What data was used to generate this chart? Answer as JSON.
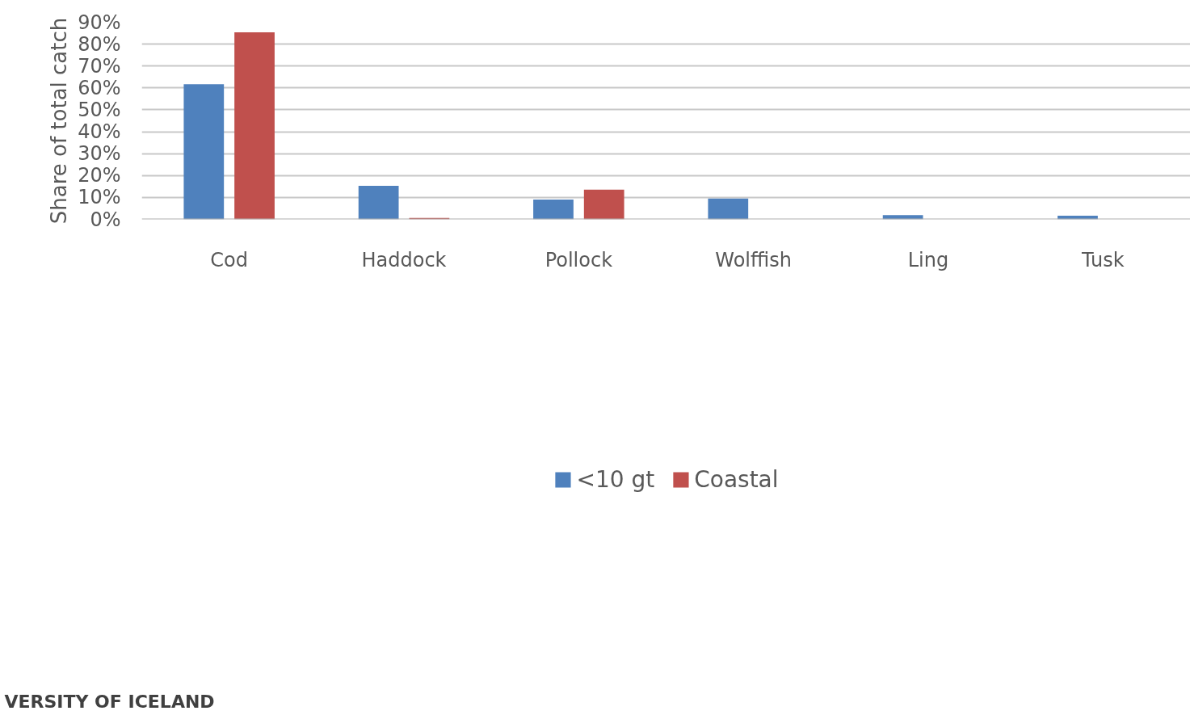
{
  "chart_data": {
    "type": "bar",
    "ylabel": "Share of total catch",
    "categories": [
      "Cod",
      "Haddock",
      "Pollock",
      "Wolffish",
      "Ling",
      "Tusk"
    ],
    "series": [
      {
        "name": "<10 gt",
        "color": "#4f81bd",
        "values": [
          61.7,
          15.3,
          9.0,
          9.5,
          1.9,
          1.7
        ]
      },
      {
        "name": "Coastal",
        "color": "#c0504d",
        "values": [
          85.4,
          0.6,
          13.6,
          0,
          0,
          0
        ]
      }
    ],
    "ylim": [
      0,
      90
    ],
    "yticks": [
      {
        "value": 0,
        "label": "0%"
      },
      {
        "value": 10,
        "label": "10%"
      },
      {
        "value": 20,
        "label": "20%"
      },
      {
        "value": 30,
        "label": "30%"
      },
      {
        "value": 40,
        "label": "40%"
      },
      {
        "value": 50,
        "label": "50%"
      },
      {
        "value": 60,
        "label": "60%"
      },
      {
        "value": 70,
        "label": "70%"
      },
      {
        "value": 80,
        "label": "80%"
      },
      {
        "value": 90,
        "label": "90%"
      }
    ],
    "grid": "y",
    "legend": "bottom",
    "annotations": [
      "VERSITY OF ICELAND"
    ]
  }
}
